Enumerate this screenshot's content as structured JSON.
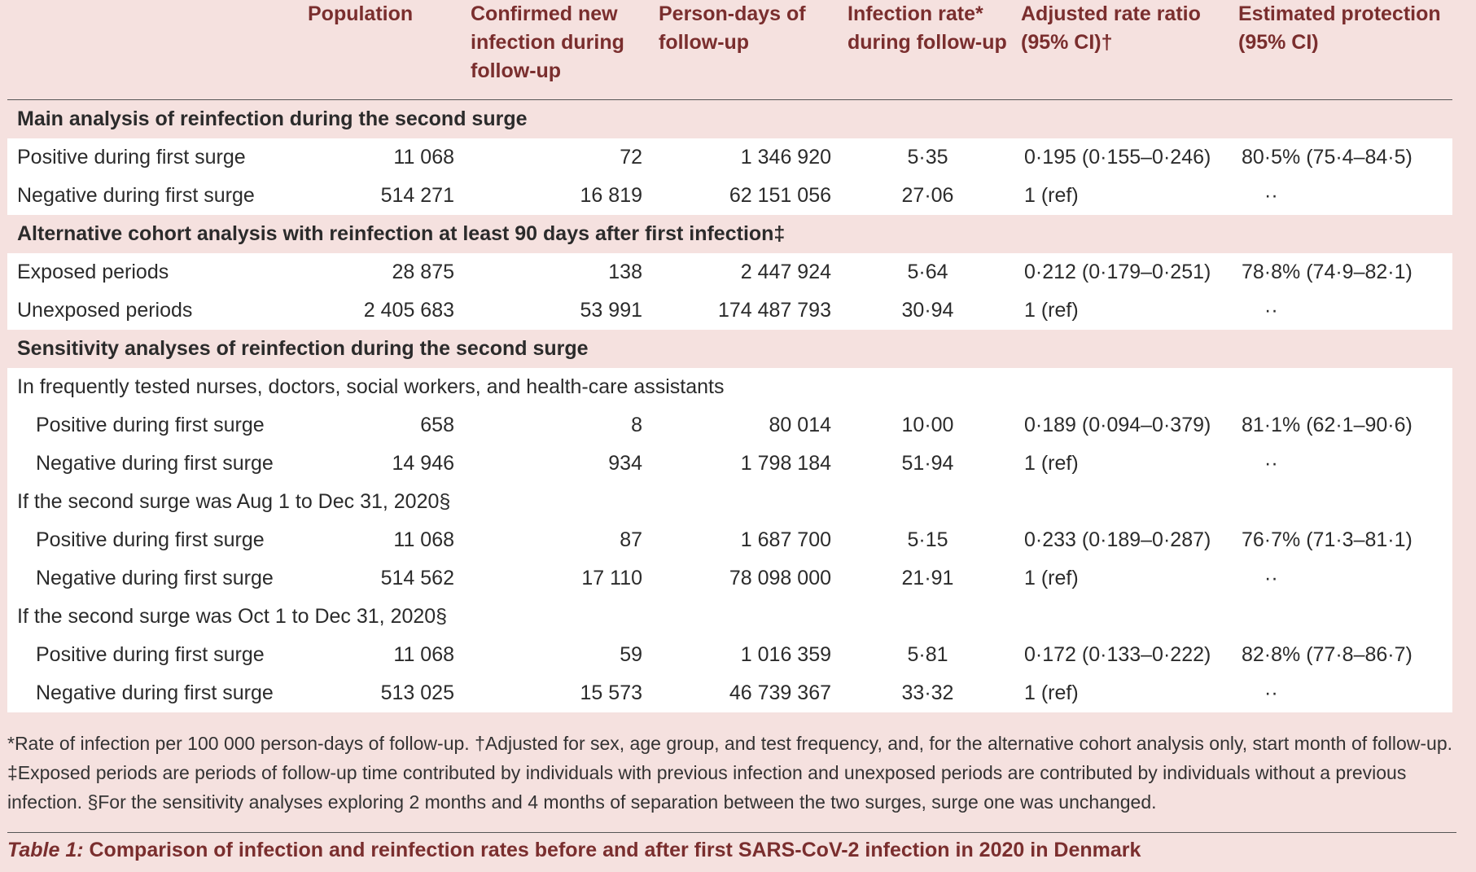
{
  "headers": [
    "",
    "Population",
    "Confirmed new infection during follow-up",
    "Person-days of follow-up",
    "Infection rate* during follow-up",
    "Adjusted rate ratio (95% CI)†",
    "Estimated protection (95% CI)"
  ],
  "sections": {
    "main": {
      "title": "Main analysis of reinfection during the second surge",
      "rows": [
        [
          "Positive during first surge",
          "11 068",
          "72",
          "1 346 920",
          "5·35",
          "0·195 (0·155–0·246)",
          "80·5% (75·4–84·5)"
        ],
        [
          "Negative during first surge",
          "514 271",
          "16 819",
          "62 151 056",
          "27·06",
          "1 (ref)",
          "··"
        ]
      ]
    },
    "alternative": {
      "title": "Alternative cohort analysis with reinfection at least 90 days after first infection‡",
      "rows": [
        [
          "Exposed periods",
          "28 875",
          "138",
          "2 447 924",
          "5·64",
          "0·212 (0·179–0·251)",
          "78·8% (74·9–82·1)"
        ],
        [
          "Unexposed periods",
          "2 405 683",
          "53 991",
          "174 487 793",
          "30·94",
          "1 (ref)",
          "··"
        ]
      ]
    },
    "sensitivity": {
      "title": "Sensitivity analyses of reinfection during the second surge",
      "groups": [
        {
          "label": "In frequently tested nurses, doctors, social workers, and health-care assistants",
          "rows": [
            [
              "Positive during first surge",
              "658",
              "8",
              "80 014",
              "10·00",
              "0·189 (0·094–0·379)",
              "81·1% (62·1–90·6)"
            ],
            [
              "Negative during first surge",
              "14 946",
              "934",
              "1 798 184",
              "51·94",
              "1 (ref)",
              "··"
            ]
          ]
        },
        {
          "label": "If the second surge was Aug 1 to Dec 31, 2020§",
          "rows": [
            [
              "Positive during first surge",
              "11 068",
              "87",
              "1 687 700",
              "5·15",
              "0·233 (0·189–0·287)",
              "76·7% (71·3–81·1)"
            ],
            [
              "Negative during first surge",
              "514 562",
              "17 110",
              "78 098 000",
              "21·91",
              "1 (ref)",
              "··"
            ]
          ]
        },
        {
          "label": "If the second surge was Oct 1 to Dec 31, 2020§",
          "rows": [
            [
              "Positive during first surge",
              "11 068",
              "59",
              "1 016 359",
              "5·81",
              "0·172 (0·133–0·222)",
              "82·8% (77·8–86·7)"
            ],
            [
              "Negative during first surge",
              "513 025",
              "15 573",
              "46 739 367",
              "33·32",
              "1 (ref)",
              "··"
            ]
          ]
        }
      ]
    }
  },
  "footnote": "*Rate of infection per 100 000 person-days of follow-up. †Adjusted for sex, age group, and test frequency, and, for the alternative cohort analysis only, start month of follow-up. ‡Exposed periods are periods of follow-up time contributed by individuals with previous infection and unexposed periods are contributed by individuals without a previous infection. §For the sensitivity analyses exploring 2 months  and 4 months of separation between the two surges, surge one was unchanged.",
  "caption": {
    "label": "Table 1:",
    "text": " Comparison of infection and reinfection rates before and after first SARS-CoV-2 infection in 2020 in Denmark"
  }
}
